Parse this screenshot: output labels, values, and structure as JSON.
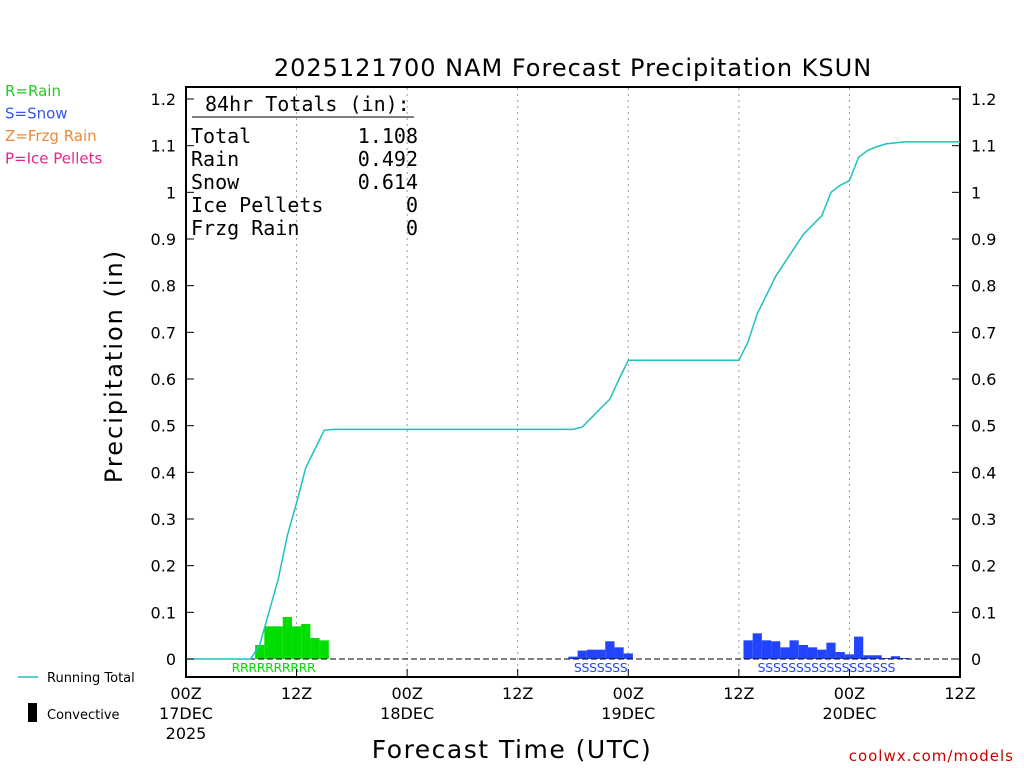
{
  "chart_data": {
    "type": "bar",
    "title": "2025121700 NAM Forecast Precipitation KSUN",
    "xlabel": "Forecast Time (UTC)",
    "ylabel": "Precipitation (in)",
    "x_unit": "forecast hour",
    "xlim": [
      0,
      84
    ],
    "ylim": [
      0,
      1.2
    ],
    "yticks": [
      0,
      0.1,
      0.2,
      0.3,
      0.4,
      0.5,
      0.6,
      0.7,
      0.8,
      0.9,
      1,
      1.1,
      1.2
    ],
    "xticks": [
      {
        "hour": 0,
        "label": "00Z",
        "date": "17DEC",
        "year": "2025"
      },
      {
        "hour": 12,
        "label": "12Z",
        "date": "",
        "year": ""
      },
      {
        "hour": 24,
        "label": "00Z",
        "date": "18DEC",
        "year": ""
      },
      {
        "hour": 36,
        "label": "12Z",
        "date": "",
        "year": ""
      },
      {
        "hour": 48,
        "label": "00Z",
        "date": "19DEC",
        "year": ""
      },
      {
        "hour": 60,
        "label": "12Z",
        "date": "",
        "year": ""
      },
      {
        "hour": 72,
        "label": "00Z",
        "date": "20DEC",
        "year": ""
      },
      {
        "hour": 84,
        "label": "12Z",
        "date": "",
        "year": ""
      }
    ],
    "legend_types": [
      {
        "label": "R=Rain",
        "color": "#22cc22"
      },
      {
        "label": "S=Snow",
        "color": "#3355ee"
      },
      {
        "label": "Z=Frzg Rain",
        "color": "#ee8833"
      },
      {
        "label": "P=Ice Pellets",
        "color": "#ee2288"
      }
    ],
    "legend_lines": [
      {
        "label": "Running Total",
        "color": "#20c0c0"
      },
      {
        "label": "Convective",
        "color": "#000000"
      }
    ],
    "totals": {
      "header": "84hr Totals (in):",
      "rows": [
        {
          "label": "Total",
          "value": "1.108"
        },
        {
          "label": "Rain",
          "value": "0.492"
        },
        {
          "label": "Snow",
          "value": "0.614"
        },
        {
          "label": "Ice Pellets",
          "value": "0"
        },
        {
          "label": "Frzg Rain",
          "value": "0"
        }
      ]
    },
    "series": [
      {
        "name": "Rain",
        "ptype": "R",
        "color": "#00dd00",
        "hours": [
          8,
          9,
          10,
          11,
          12,
          13,
          14,
          15
        ],
        "values": [
          0.03,
          0.07,
          0.07,
          0.09,
          0.07,
          0.075,
          0.045,
          0.04
        ]
      },
      {
        "name": "Snow",
        "ptype": "S",
        "color": "#2244ff",
        "hours": [
          42,
          43,
          44,
          45,
          46,
          47,
          48,
          61,
          62,
          63,
          64,
          65,
          66,
          67,
          68,
          69,
          70,
          71,
          72,
          73,
          74,
          75,
          76,
          77,
          78
        ],
        "values": [
          0.005,
          0.018,
          0.02,
          0.02,
          0.038,
          0.025,
          0.012,
          0.04,
          0.055,
          0.04,
          0.038,
          0.025,
          0.04,
          0.03,
          0.025,
          0.02,
          0.035,
          0.015,
          0.01,
          0.048,
          0.008,
          0.008,
          0.002,
          0.006,
          0.002
        ]
      }
    ],
    "running_total": {
      "name": "Running Total",
      "color": "#20c0c0",
      "hours": [
        0,
        7,
        8,
        9,
        10,
        11,
        12,
        13,
        14,
        15,
        16,
        42,
        43,
        44,
        45,
        46,
        47,
        48,
        60,
        61,
        62,
        63,
        64,
        65,
        66,
        67,
        68,
        69,
        70,
        71,
        72,
        73,
        74,
        75,
        76,
        77,
        78,
        84
      ],
      "values": [
        0,
        0,
        0.03,
        0.1,
        0.17,
        0.265,
        0.335,
        0.41,
        0.45,
        0.49,
        0.492,
        0.492,
        0.497,
        0.517,
        0.537,
        0.557,
        0.6,
        0.64,
        0.64,
        0.68,
        0.74,
        0.78,
        0.82,
        0.85,
        0.88,
        0.91,
        0.93,
        0.95,
        1.0,
        1.015,
        1.025,
        1.075,
        1.09,
        1.098,
        1.104,
        1.106,
        1.108,
        1.108
      ]
    },
    "ptype_strings": [
      {
        "text": "RRRRRRRRRR",
        "hour": 9.5,
        "color": "#00dd00"
      },
      {
        "text": "SSSSSSS",
        "hour": 45,
        "color": "#2244ff"
      },
      {
        "text": "SSSSSSSSSSSSSSSSSS",
        "hour": 69.5,
        "color": "#2244ff"
      }
    ],
    "credit": "coolwx.com/models"
  }
}
